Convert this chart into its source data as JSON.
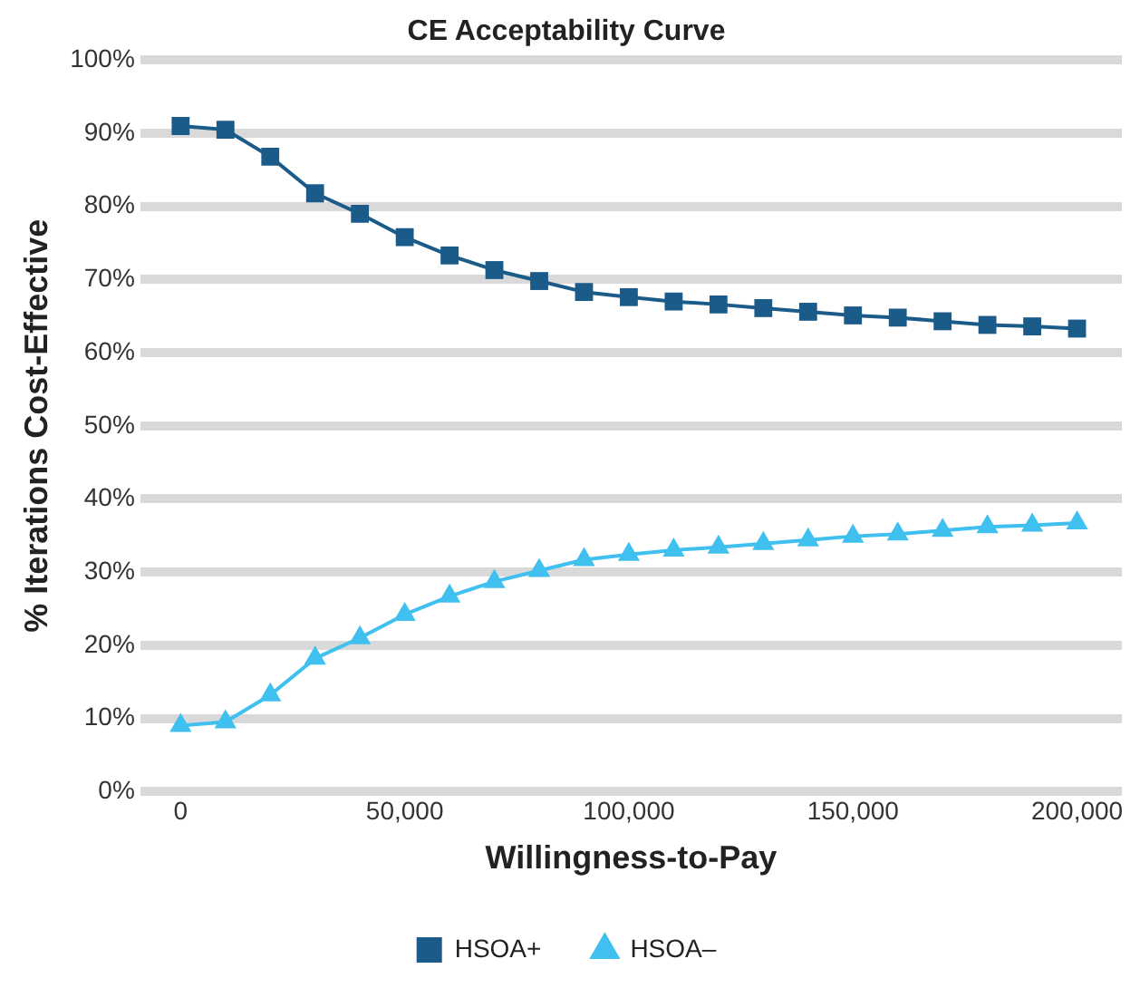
{
  "chart_data": {
    "type": "line",
    "title": "CE Acceptability Curve",
    "xlabel": "Willingness-to-Pay",
    "ylabel": "% Iterations Cost-Effective",
    "x": [
      0,
      10000,
      20000,
      30000,
      40000,
      50000,
      60000,
      70000,
      80000,
      90000,
      100000,
      110000,
      120000,
      130000,
      140000,
      150000,
      160000,
      170000,
      180000,
      190000,
      200000
    ],
    "series": [
      {
        "name": "HSOA+",
        "color": "#1b5b8a",
        "marker": "square",
        "values": [
          91,
          90.5,
          86.8,
          81.8,
          79,
          75.8,
          73.3,
          71.3,
          69.8,
          68.3,
          67.6,
          67,
          66.6,
          66.1,
          65.6,
          65.1,
          64.8,
          64.3,
          63.8,
          63.6,
          63.3
        ]
      },
      {
        "name": "HSOA–",
        "color": "#3fc0ef",
        "marker": "triangle",
        "values": [
          9,
          9.5,
          13.2,
          18.2,
          21,
          24.2,
          26.7,
          28.7,
          30.2,
          31.7,
          32.4,
          33,
          33.4,
          33.9,
          34.4,
          34.9,
          35.2,
          35.7,
          36.2,
          36.4,
          36.7
        ]
      }
    ],
    "xlim": [
      -9000,
      210000
    ],
    "xticks": [
      {
        "value": 0,
        "label": "0"
      },
      {
        "value": 50000,
        "label": "50,000"
      },
      {
        "value": 100000,
        "label": "100,000"
      },
      {
        "value": 150000,
        "label": "150,000"
      },
      {
        "value": 200000,
        "label": "200,000"
      }
    ],
    "ylim": [
      0,
      100
    ],
    "yticks": [
      {
        "value": 0,
        "label": "0%"
      },
      {
        "value": 10,
        "label": "10%"
      },
      {
        "value": 20,
        "label": "20%"
      },
      {
        "value": 30,
        "label": "30%"
      },
      {
        "value": 40,
        "label": "40%"
      },
      {
        "value": 50,
        "label": "50%"
      },
      {
        "value": 60,
        "label": "60%"
      },
      {
        "value": 70,
        "label": "70%"
      },
      {
        "value": 80,
        "label": "80%"
      },
      {
        "value": 90,
        "label": "90%"
      },
      {
        "value": 100,
        "label": "100%"
      }
    ],
    "grid": "y",
    "legend": "bottom"
  }
}
